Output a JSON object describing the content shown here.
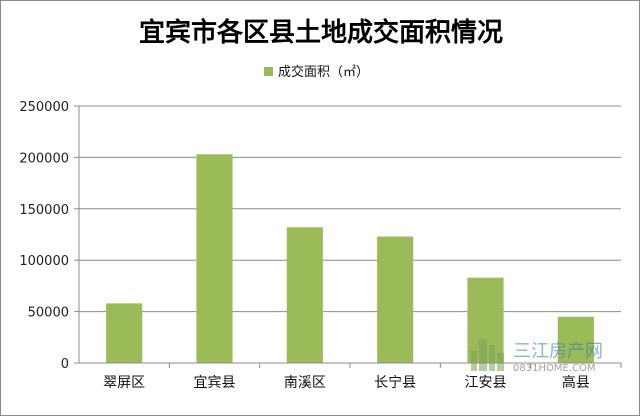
{
  "chart_data": {
    "type": "bar",
    "title": "宜宾市各区县土地成交面积情况",
    "categories": [
      "翠屏区",
      "宜宾县",
      "南溪区",
      "长宁县",
      "江安县",
      "高县"
    ],
    "series": [
      {
        "name": "成交面积（㎡）",
        "values": [
          58000,
          203000,
          132000,
          123000,
          83000,
          45000
        ]
      }
    ],
    "ylim": [
      0,
      250000
    ],
    "yticks": [
      "0",
      "50000",
      "100000",
      "150000",
      "200000",
      "250000"
    ],
    "xlabel": "",
    "ylabel": "",
    "grid": true,
    "legend_position": "top",
    "colors": {
      "bar": "#9bbb59",
      "grid": "#8c8c8c",
      "axis": "#8c8c8c"
    }
  },
  "watermark": {
    "text_cn": "三江房产网",
    "text_en": "0831HOME.COM"
  }
}
